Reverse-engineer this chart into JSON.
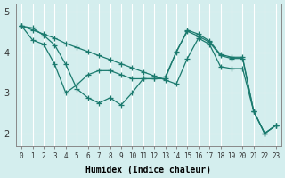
{
  "xlabel": "Humidex (Indice chaleur)",
  "ylabel": "",
  "bg_color": "#d4eeee",
  "line_color": "#1a7a6e",
  "grid_color": "#ffffff",
  "x_ticks": [
    0,
    1,
    2,
    3,
    4,
    5,
    6,
    7,
    8,
    9,
    10,
    11,
    12,
    13,
    14,
    15,
    16,
    17,
    18,
    19,
    20,
    21,
    22,
    23
  ],
  "y_ticks": [
    2,
    3,
    4,
    5
  ],
  "ylim": [
    1.7,
    5.2
  ],
  "xlim": [
    -0.5,
    23.5
  ],
  "series": [
    [
      4.65,
      4.55,
      4.45,
      4.35,
      4.22,
      4.12,
      4.02,
      3.92,
      3.82,
      3.72,
      3.62,
      3.52,
      3.42,
      3.32,
      3.22,
      3.85,
      4.35,
      4.2,
      3.65,
      3.6,
      3.6,
      2.55,
      2.0,
      2.2
    ],
    [
      4.65,
      4.6,
      4.42,
      4.18,
      3.7,
      3.1,
      2.88,
      2.75,
      2.88,
      2.7,
      3.0,
      3.35,
      3.35,
      3.4,
      4.0,
      4.55,
      4.45,
      4.28,
      3.95,
      3.88,
      3.88,
      2.55,
      2.0,
      2.2
    ],
    [
      4.65,
      4.3,
      4.2,
      3.7,
      3.0,
      3.2,
      3.45,
      3.55,
      3.55,
      3.45,
      3.35,
      3.35,
      3.35,
      3.35,
      4.02,
      4.52,
      4.4,
      4.25,
      3.92,
      3.85,
      3.85,
      2.55,
      2.0,
      2.2
    ]
  ]
}
